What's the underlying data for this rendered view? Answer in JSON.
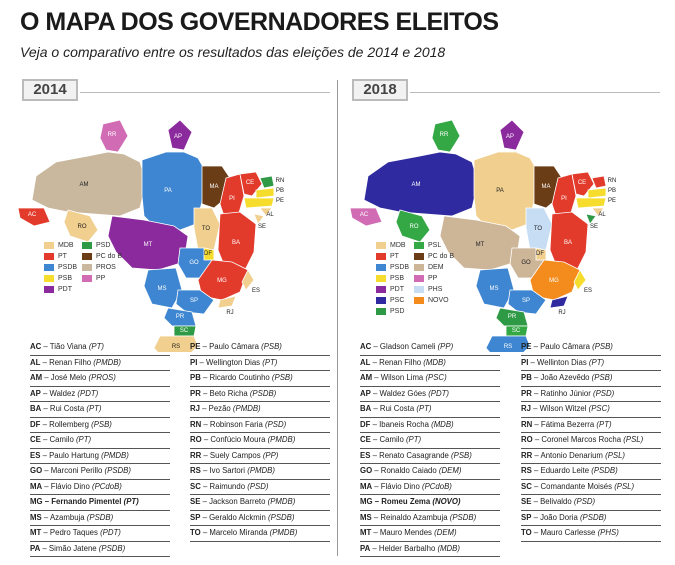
{
  "title": "O MAPA DOS GOVERNADORES ELEITOS",
  "subtitle": "Veja o comparativo entre os resultados das eleições de 2014 e 2018",
  "colors": {
    "MDB": "#f1cf8f",
    "PT": "#e23a2b",
    "PSDB": "#3e86d1",
    "PSB": "#f6dc2c",
    "PDT": "#8b2a9c",
    "PSD": "#2f9a45",
    "PCdoB": "#6a3d16",
    "PROS": "#c9b89d",
    "PP": "#d06bb4",
    "PSL": "#35a846",
    "DEM": "#cdb598",
    "PHS": "#c6ddf3",
    "PSC": "#2f2aa0",
    "NOVO": "#f48c1d"
  },
  "panels": [
    {
      "year": "2014",
      "states": {
        "RR": "PP",
        "AP": "PDT",
        "AM": "PROS",
        "PA": "PSDB",
        "MA": "PCdoB",
        "CE": "PT",
        "RN": "PSD",
        "PB": "PSB",
        "PE": "PSB",
        "AL": "MDB",
        "SE": "MDB",
        "PI": "PT",
        "TO": "MDB",
        "BA": "PT",
        "AC": "PT",
        "RO": "MDB",
        "MT": "PDT",
        "DF": "PSB",
        "GO": "PSDB",
        "MG": "PT",
        "ES": "MDB",
        "MS": "PSDB",
        "SP": "PSDB",
        "RJ": "MDB",
        "PR": "PSDB",
        "SC": "PSD",
        "RS": "MDB"
      },
      "legend": [
        {
          "party": "MDB",
          "label": "MDB"
        },
        {
          "party": "PSD",
          "label": "PSD"
        },
        {
          "party": "PT",
          "label": "PT"
        },
        {
          "party": "PCdoB",
          "label": "PC do B"
        },
        {
          "party": "PSDB",
          "label": "PSDB"
        },
        {
          "party": "PROS",
          "label": "PROS"
        },
        {
          "party": "PSB",
          "label": "PSB"
        },
        {
          "party": "PP",
          "label": "PP"
        },
        {
          "party": "PDT",
          "label": "PDT"
        }
      ],
      "governors": [
        [
          {
            "uf": "AC",
            "name": "Tião Viana",
            "party": "PT"
          },
          {
            "uf": "AL",
            "name": "Renan Filho",
            "party": "PMDB"
          },
          {
            "uf": "AM",
            "name": "José Melo",
            "party": "PROS"
          },
          {
            "uf": "AP",
            "name": "Waldez",
            "party": "PDT"
          },
          {
            "uf": "BA",
            "name": "Rui Costa",
            "party": "PT"
          },
          {
            "uf": "DF",
            "name": "Rollemberg",
            "party": "PSB"
          },
          {
            "uf": "CE",
            "name": "Camilo",
            "party": "PT"
          },
          {
            "uf": "ES",
            "name": "Paulo Hartung",
            "party": "PMDB"
          },
          {
            "uf": "GO",
            "name": "Marconi Perillo",
            "party": "PSDB"
          },
          {
            "uf": "MA",
            "name": "Flávio Dino",
            "party": "PCdoB"
          },
          {
            "uf": "MG",
            "name": "Fernando Pimentel",
            "party": "PT",
            "highlight": true
          },
          {
            "uf": "MS",
            "name": "Azambuja",
            "party": "PSDB"
          },
          {
            "uf": "MT",
            "name": "Pedro Taques",
            "party": "PDT"
          },
          {
            "uf": "PA",
            "name": "Simão Jatene",
            "party": "PSDB"
          }
        ],
        [
          {
            "uf": "PE",
            "name": "Paulo Câmara",
            "party": "PSB"
          },
          {
            "uf": "PI",
            "name": "Wellington Dias",
            "party": "PT"
          },
          {
            "uf": "PB",
            "name": "Ricardo Coutinho",
            "party": "PSB"
          },
          {
            "uf": "PR",
            "name": "Beto Richa",
            "party": "PSDB"
          },
          {
            "uf": "RJ",
            "name": "Pezão",
            "party": "PMDB"
          },
          {
            "uf": "RN",
            "name": "Robinson Faria",
            "party": "PSD"
          },
          {
            "uf": "RO",
            "name": "Confúcio Moura",
            "party": "PMDB"
          },
          {
            "uf": "RR",
            "name": "Suely Campos",
            "party": "PP"
          },
          {
            "uf": "RS",
            "name": "Ivo Sartori",
            "party": "PMDB"
          },
          {
            "uf": "SC",
            "name": "Raimundo",
            "party": "PSD"
          },
          {
            "uf": "SE",
            "name": "Jackson Barreto",
            "party": "PMDB"
          },
          {
            "uf": "SP",
            "name": "Geraldo Alckmin",
            "party": "PSDB"
          },
          {
            "uf": "TO",
            "name": "Marcelo Miranda",
            "party": "PMDB"
          }
        ]
      ]
    },
    {
      "year": "2018",
      "states": {
        "RR": "PSL",
        "AP": "PDT",
        "AM": "PSC",
        "PA": "MDB",
        "MA": "PCdoB",
        "CE": "PT",
        "RN": "PT",
        "PB": "PSB",
        "PE": "PSB",
        "AL": "MDB",
        "SE": "PSD",
        "PI": "PT",
        "TO": "PHS",
        "BA": "PT",
        "AC": "PP",
        "RO": "PSL",
        "MT": "DEM",
        "DF": "MDB",
        "GO": "DEM",
        "MG": "NOVO",
        "ES": "PSB",
        "MS": "PSDB",
        "SP": "PSDB",
        "RJ": "PSC",
        "PR": "PSD",
        "SC": "PSL",
        "RS": "PSDB"
      },
      "legend": [
        {
          "party": "MDB",
          "label": "MDB"
        },
        {
          "party": "PSL",
          "label": "PSL"
        },
        {
          "party": "PT",
          "label": "PT"
        },
        {
          "party": "PCdoB",
          "label": "PC do B"
        },
        {
          "party": "PSDB",
          "label": "PSDB"
        },
        {
          "party": "DEM",
          "label": "DEM"
        },
        {
          "party": "PSB",
          "label": "PSB"
        },
        {
          "party": "PP",
          "label": "PP"
        },
        {
          "party": "PDT",
          "label": "PDT"
        },
        {
          "party": "PHS",
          "label": "PHS"
        },
        {
          "party": "PSC",
          "label": "PSC"
        },
        {
          "party": "NOVO",
          "label": "NOVO"
        },
        {
          "party": "PSD",
          "label": "PSD"
        }
      ],
      "governors": [
        [
          {
            "uf": "AC",
            "name": "Gladson Cameli",
            "party": "PP"
          },
          {
            "uf": "AL",
            "name": "Renan Filho",
            "party": "MDB"
          },
          {
            "uf": "AM",
            "name": "Wilson Lima",
            "party": "PSC"
          },
          {
            "uf": "AP",
            "name": "Waldez Góes",
            "party": "PDT"
          },
          {
            "uf": "BA",
            "name": "Rui Costa",
            "party": "PT"
          },
          {
            "uf": "DF",
            "name": "Ibaneis Rocha",
            "party": "MDB"
          },
          {
            "uf": "CE",
            "name": "Camilo",
            "party": "PT"
          },
          {
            "uf": "ES",
            "name": "Renato Casagrande",
            "party": "PSB"
          },
          {
            "uf": "GO",
            "name": "Ronaldo Caiado",
            "party": "DEM"
          },
          {
            "uf": "MA",
            "name": "Flávio Dino",
            "party": "PCdoB"
          },
          {
            "uf": "MG",
            "name": "Romeu Zema",
            "party": "NOVO",
            "highlight": true
          },
          {
            "uf": "MS",
            "name": "Reinaldo Azambuja",
            "party": "PSDB"
          },
          {
            "uf": "MT",
            "name": "Mauro Mendes",
            "party": "DEM"
          },
          {
            "uf": "PA",
            "name": "Helder Barbalho",
            "party": "MDB"
          }
        ],
        [
          {
            "uf": "PE",
            "name": "Paulo Câmara",
            "party": "PSB"
          },
          {
            "uf": "PI",
            "name": "Wellinton Dias",
            "party": "PT"
          },
          {
            "uf": "PB",
            "name": "João Azevêdo",
            "party": "PSB"
          },
          {
            "uf": "PR",
            "name": "Ratinho Júnior",
            "party": "PSD"
          },
          {
            "uf": "RJ",
            "name": "Wilson Witzel",
            "party": "PSC"
          },
          {
            "uf": "RN",
            "name": "Fátima Bezerra",
            "party": "PT"
          },
          {
            "uf": "RO",
            "name": "Coronel Marcos Rocha",
            "party": "PSL"
          },
          {
            "uf": "RR",
            "name": "Antonio Denarium",
            "party": "PSL"
          },
          {
            "uf": "RS",
            "name": "Eduardo Leite",
            "party": "PSDB"
          },
          {
            "uf": "SC",
            "name": "Comandante Moisés",
            "party": "PSL"
          },
          {
            "uf": "SE",
            "name": "Belivaldo",
            "party": "PSD"
          },
          {
            "uf": "SP",
            "name": "João Doria",
            "party": "PSDB"
          },
          {
            "uf": "TO",
            "name": "Mauro Carlesse",
            "party": "PHS"
          }
        ]
      ]
    }
  ]
}
